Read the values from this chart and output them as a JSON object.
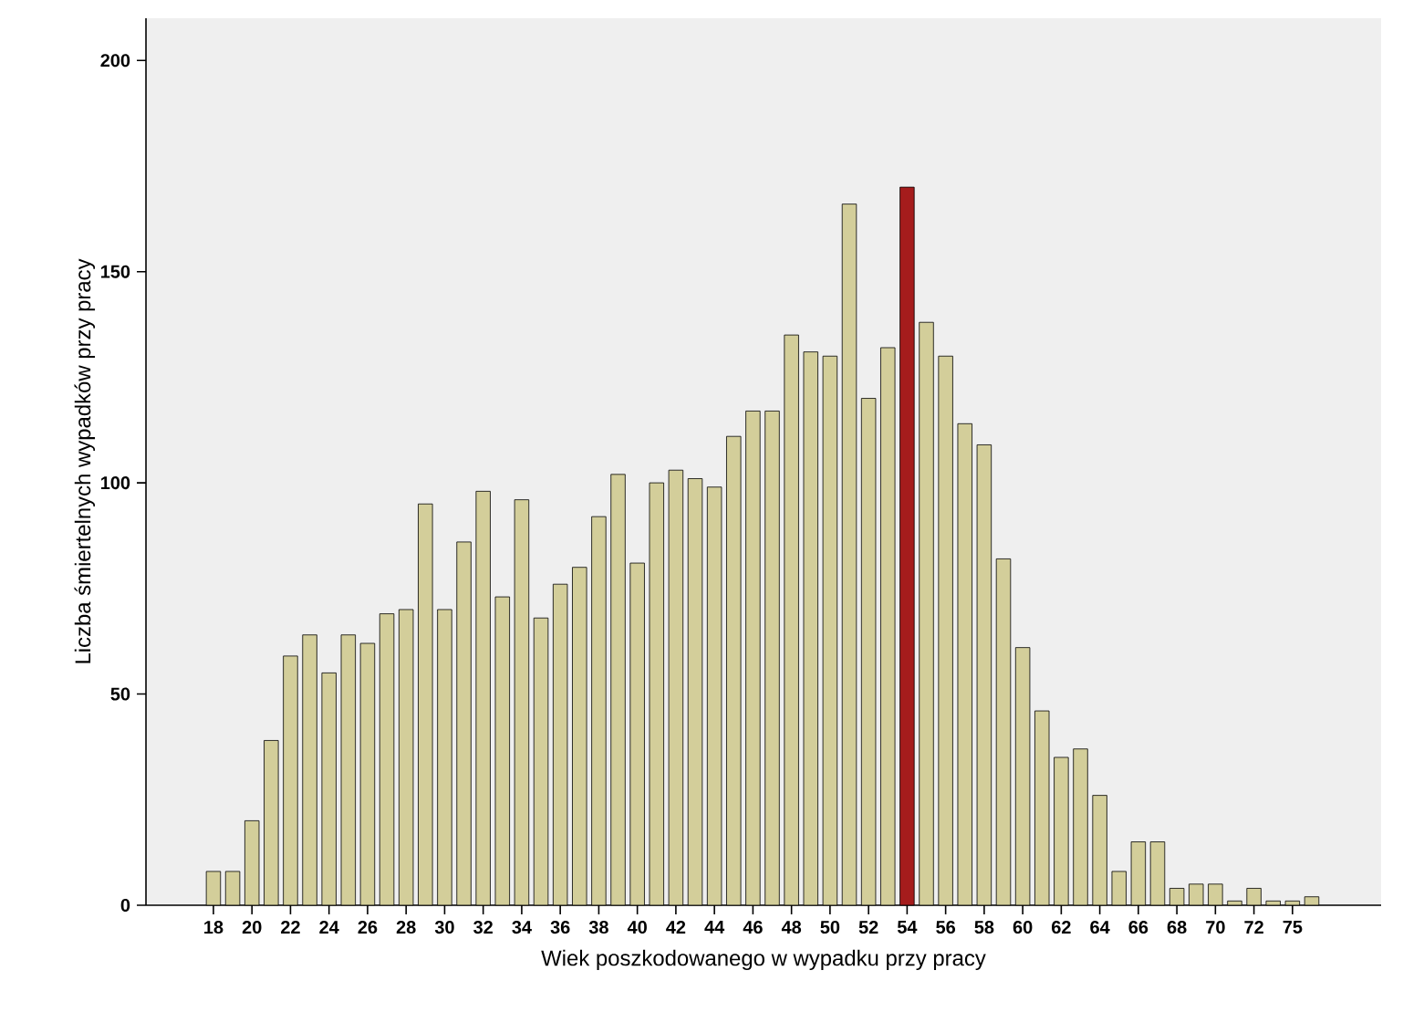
{
  "chart_data": {
    "type": "bar",
    "xlabel": "Wiek poszkodowanego w wypadku przy pracy",
    "ylabel": "Liczba śmiertelnych wypadków przy pracy",
    "categories": [
      "18",
      null,
      "20",
      null,
      "22",
      null,
      "24",
      null,
      "26",
      null,
      "28",
      null,
      "30",
      null,
      "32",
      null,
      "34",
      null,
      "36",
      null,
      "38",
      null,
      "40",
      null,
      "42",
      null,
      "44",
      null,
      "46",
      null,
      "48",
      null,
      "50",
      null,
      "52",
      null,
      "54",
      null,
      "56",
      null,
      "58",
      null,
      "60",
      null,
      "62",
      null,
      "64",
      null,
      "66",
      null,
      "68",
      null,
      "70",
      null,
      "72",
      null,
      "75",
      null
    ],
    "values": [
      8,
      8,
      20,
      39,
      59,
      64,
      55,
      64,
      62,
      69,
      70,
      95,
      70,
      86,
      98,
      73,
      96,
      68,
      76,
      80,
      92,
      102,
      81,
      100,
      103,
      101,
      99,
      111,
      117,
      117,
      135,
      131,
      130,
      166,
      120,
      132,
      170,
      138,
      130,
      114,
      109,
      82,
      61,
      46,
      35,
      37,
      26,
      8,
      15,
      15,
      4,
      5,
      5,
      1,
      4,
      1,
      1,
      2
    ],
    "colors": [
      "#d3ce9a",
      "#d3ce9a",
      "#d3ce9a",
      "#d3ce9a",
      "#d3ce9a",
      "#d3ce9a",
      "#d3ce9a",
      "#d3ce9a",
      "#d3ce9a",
      "#d3ce9a",
      "#d3ce9a",
      "#d3ce9a",
      "#d3ce9a",
      "#d3ce9a",
      "#d3ce9a",
      "#d3ce9a",
      "#d3ce9a",
      "#d3ce9a",
      "#d3ce9a",
      "#d3ce9a",
      "#d3ce9a",
      "#d3ce9a",
      "#d3ce9a",
      "#d3ce9a",
      "#d3ce9a",
      "#d3ce9a",
      "#d3ce9a",
      "#d3ce9a",
      "#d3ce9a",
      "#d3ce9a",
      "#d3ce9a",
      "#d3ce9a",
      "#d3ce9a",
      "#d3ce9a",
      "#d3ce9a",
      "#d3ce9a",
      "#a51c1c",
      "#d3ce9a",
      "#d3ce9a",
      "#d3ce9a",
      "#d3ce9a",
      "#d3ce9a",
      "#d3ce9a",
      "#d3ce9a",
      "#d3ce9a",
      "#d3ce9a",
      "#d3ce9a",
      "#d3ce9a",
      "#d3ce9a",
      "#d3ce9a",
      "#d3ce9a",
      "#d3ce9a",
      "#d3ce9a",
      "#d3ce9a",
      "#d3ce9a",
      "#d3ce9a",
      "#d3ce9a",
      "#d3ce9a"
    ],
    "ylim": [
      0,
      210
    ],
    "yticks": [
      0,
      50,
      100,
      150,
      200
    ]
  }
}
